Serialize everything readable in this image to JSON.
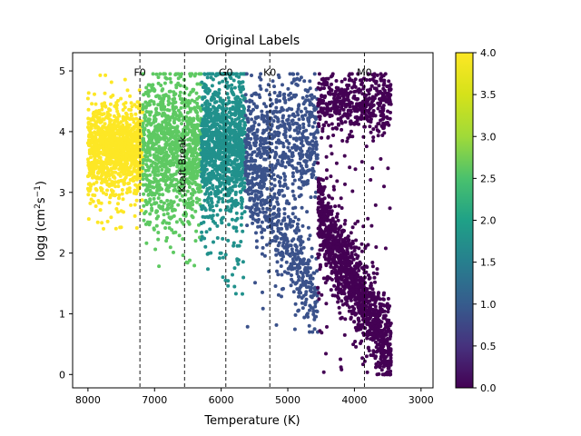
{
  "chart_data": {
    "type": "scatter",
    "title": "Original Labels",
    "xlabel": "Temperature (K)",
    "ylabel_parts": [
      "logg (cm",
      "2",
      "s",
      "−1",
      ")"
    ],
    "x_inverted": true,
    "xlim": [
      8230,
      2820
    ],
    "ylim": [
      -0.22,
      5.3
    ],
    "x_ticks": [
      {
        "value": 8000,
        "label": "8000"
      },
      {
        "value": 7000,
        "label": "7000"
      },
      {
        "value": 6000,
        "label": "6000"
      },
      {
        "value": 5000,
        "label": "5000"
      },
      {
        "value": 4000,
        "label": "4000"
      },
      {
        "value": 3000,
        "label": "3000"
      }
    ],
    "y_ticks": [
      {
        "value": 0,
        "label": "0"
      },
      {
        "value": 1,
        "label": "1"
      },
      {
        "value": 2,
        "label": "2"
      },
      {
        "value": 3,
        "label": "3"
      },
      {
        "value": 4,
        "label": "4"
      },
      {
        "value": 5,
        "label": "5"
      }
    ],
    "colorbar": {
      "colormap": "viridis",
      "range": [
        0,
        4
      ],
      "ticks": [
        {
          "value": 0,
          "label": "0.0"
        },
        {
          "value": 0.5,
          "label": "0.5"
        },
        {
          "value": 1,
          "label": "1.0"
        },
        {
          "value": 1.5,
          "label": "1.5"
        },
        {
          "value": 2,
          "label": "2.0"
        },
        {
          "value": 2.5,
          "label": "2.5"
        },
        {
          "value": 3,
          "label": "3.0"
        },
        {
          "value": 3.5,
          "label": "3.5"
        },
        {
          "value": 4,
          "label": "4.0"
        }
      ]
    },
    "reference_lines": [
      {
        "x": 7220,
        "label": "F0"
      },
      {
        "x": 6550,
        "label": "Kraft Break",
        "rotated": true
      },
      {
        "x": 5930,
        "label": "G0"
      },
      {
        "x": 5270,
        "label": "K0"
      },
      {
        "x": 3850,
        "label": "M0"
      }
    ],
    "groups": [
      {
        "label_value": 4,
        "color": "#fde725",
        "t_range": [
          7180,
          8000
        ],
        "logg_center": 3.75,
        "logg_spread": 0.38,
        "outlier_logg_min": 2.4
      },
      {
        "label_value": 3,
        "color": "#5ec962",
        "t_range": [
          6300,
          7180
        ],
        "logg_center": 3.7,
        "logg_spread": 0.6,
        "outlier_logg_min": 1.7
      },
      {
        "label_value": 2.5,
        "color": "#21918c",
        "t_range": [
          5640,
          6300
        ],
        "logg_center": 3.8,
        "logg_spread": 0.6,
        "outlier_logg_min": 1.3
      },
      {
        "label_value": 1,
        "color": "#3b528b",
        "t_range": [
          4550,
          5640
        ],
        "logg_center": 3.9,
        "logg_spread": 0.5,
        "outlier_logg_min": 0.7
      },
      {
        "label_value": 0,
        "color": "#440154",
        "t_range": [
          3450,
          4550
        ],
        "logg_center": 4.5,
        "logg_spread": 0.25,
        "outlier_logg_min": 0.0
      }
    ]
  }
}
